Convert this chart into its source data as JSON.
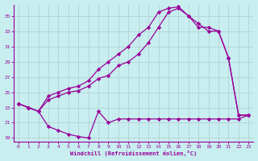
{
  "xlabel": "Windchill (Refroidissement éolien,°C)",
  "bg_color": "#c8eef0",
  "line_color": "#990099",
  "grid_color": "#b0cccc",
  "xlim": [
    -0.5,
    23.5
  ],
  "ylim": [
    18.5,
    36.5
  ],
  "xticks": [
    0,
    1,
    2,
    3,
    4,
    5,
    6,
    7,
    8,
    9,
    10,
    11,
    12,
    13,
    14,
    15,
    16,
    17,
    18,
    19,
    20,
    21,
    22,
    23
  ],
  "yticks": [
    19,
    21,
    23,
    25,
    27,
    29,
    31,
    33,
    35
  ],
  "line_bottom_x": [
    0,
    1,
    2,
    3,
    4,
    5,
    6,
    7,
    8,
    9,
    10,
    11,
    12,
    13,
    14,
    15,
    16,
    17,
    18,
    19,
    20,
    21,
    22,
    23
  ],
  "line_bottom_y": [
    23.5,
    23.0,
    22.5,
    20.5,
    20.0,
    19.5,
    19.2,
    19.0,
    22.5,
    21.0,
    21.5,
    21.5,
    21.5,
    21.5,
    21.5,
    21.5,
    21.5,
    21.5,
    21.5,
    21.5,
    21.5,
    21.5,
    21.5,
    22.0
  ],
  "line_mid_x": [
    0,
    1,
    2,
    3,
    4,
    5,
    6,
    7,
    8,
    9,
    10,
    11,
    12,
    13,
    14,
    15,
    16,
    17,
    18,
    19,
    20,
    21,
    22,
    23
  ],
  "line_mid_y": [
    23.5,
    23.0,
    22.5,
    24.0,
    24.5,
    25.0,
    25.2,
    25.8,
    26.8,
    27.2,
    28.5,
    29.0,
    30.0,
    31.5,
    33.5,
    35.5,
    36.0,
    35.0,
    34.0,
    33.0,
    33.0,
    29.5,
    22.0,
    22.0
  ],
  "line_top_x": [
    0,
    1,
    2,
    3,
    4,
    5,
    6,
    7,
    8,
    9,
    10,
    11,
    12,
    13,
    14,
    15,
    16,
    17,
    18,
    19,
    20,
    21,
    22,
    23
  ],
  "line_top_y": [
    23.5,
    23.0,
    22.5,
    24.5,
    25.0,
    25.5,
    25.8,
    26.5,
    28.0,
    29.0,
    30.0,
    31.0,
    32.5,
    33.5,
    35.5,
    36.0,
    36.2,
    35.0,
    33.5,
    33.5,
    33.0,
    29.5,
    22.0,
    22.0
  ]
}
